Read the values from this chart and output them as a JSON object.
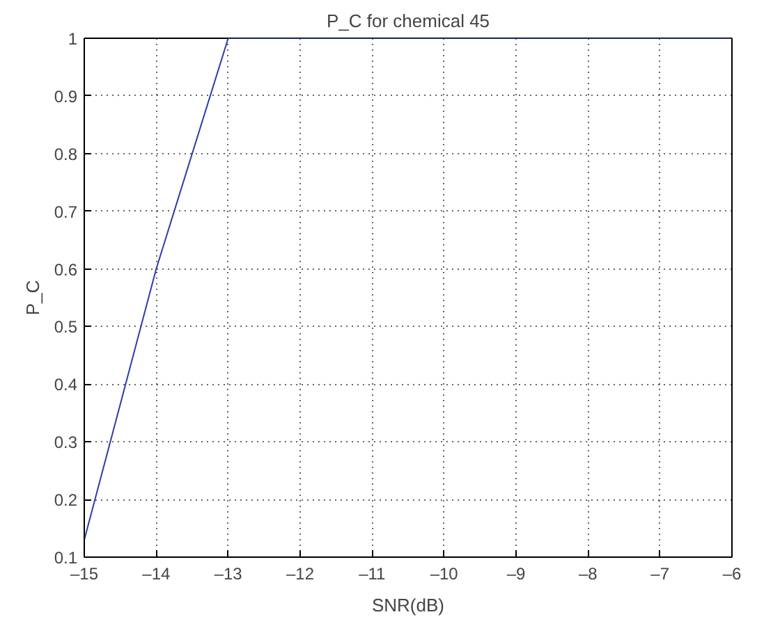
{
  "chart_data": {
    "type": "line",
    "title": "P_C for chemical 45",
    "xlabel": "SNR(dB)",
    "ylabel": "P_C",
    "x": [
      -15,
      -14,
      -13,
      -12,
      -11,
      -10,
      -9,
      -8,
      -7,
      -6
    ],
    "series": [
      {
        "color": "#2b3da8",
        "values": [
          0.13,
          0.6,
          1,
          1,
          1,
          1,
          1,
          1,
          1,
          1
        ]
      }
    ],
    "xlim": [
      -15,
      -6
    ],
    "ylim": [
      0.1,
      1
    ],
    "xticks": [
      {
        "value": -15,
        "label": "–15"
      },
      {
        "value": -14,
        "label": "–14"
      },
      {
        "value": -13,
        "label": "–13"
      },
      {
        "value": -12,
        "label": "–12"
      },
      {
        "value": -11,
        "label": "–11"
      },
      {
        "value": -10,
        "label": "–10"
      },
      {
        "value": -9,
        "label": "–9"
      },
      {
        "value": -8,
        "label": "–8"
      },
      {
        "value": -7,
        "label": "–7"
      },
      {
        "value": -6,
        "label": "–6"
      }
    ],
    "yticks": [
      0.1,
      0.2,
      0.3,
      0.4,
      0.5,
      0.6,
      0.7,
      0.8,
      0.9,
      1
    ],
    "grid": true,
    "line_style": "solid"
  }
}
